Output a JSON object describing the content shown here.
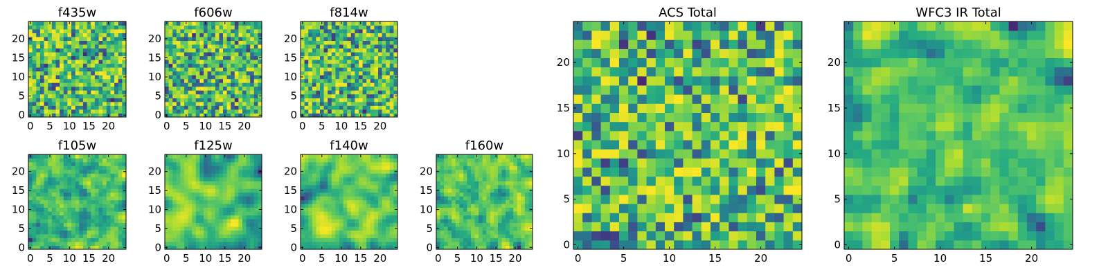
{
  "chart_data": [
    {
      "type": "heatmap",
      "title": "f435w",
      "grid_size": 25,
      "xticks": [
        0,
        5,
        10,
        15,
        20
      ],
      "yticks": [
        0,
        5,
        10,
        15,
        20
      ],
      "xlim": [
        -0.5,
        24.5
      ],
      "ylim": [
        -0.5,
        24.5
      ],
      "colormap": "viridis",
      "seed": 11,
      "smooth": 0,
      "grid": false
    },
    {
      "type": "heatmap",
      "title": "f606w",
      "grid_size": 25,
      "xticks": [
        0,
        5,
        10,
        15,
        20
      ],
      "yticks": [
        0,
        5,
        10,
        15,
        20
      ],
      "xlim": [
        -0.5,
        24.5
      ],
      "ylim": [
        -0.5,
        24.5
      ],
      "colormap": "viridis",
      "seed": 23,
      "smooth": 0,
      "grid": false
    },
    {
      "type": "heatmap",
      "title": "f814w",
      "grid_size": 25,
      "xticks": [
        0,
        5,
        10,
        15,
        20
      ],
      "yticks": [
        0,
        5,
        10,
        15,
        20
      ],
      "xlim": [
        -0.5,
        24.5
      ],
      "ylim": [
        -0.5,
        24.5
      ],
      "colormap": "viridis",
      "seed": 37,
      "smooth": 0,
      "grid": false
    },
    {
      "type": "heatmap",
      "title": "f105w",
      "grid_size": 25,
      "xticks": [
        0,
        5,
        10,
        15,
        20
      ],
      "yticks": [
        0,
        5,
        10,
        15,
        20
      ],
      "xlim": [
        -0.5,
        24.5
      ],
      "ylim": [
        -0.5,
        24.5
      ],
      "colormap": "viridis",
      "seed": 41,
      "smooth": 1,
      "grid": false
    },
    {
      "type": "heatmap",
      "title": "f125w",
      "grid_size": 25,
      "xticks": [
        0,
        5,
        10,
        15,
        20
      ],
      "yticks": [
        0,
        5,
        10,
        15,
        20
      ],
      "xlim": [
        -0.5,
        24.5
      ],
      "ylim": [
        -0.5,
        24.5
      ],
      "colormap": "viridis",
      "seed": 53,
      "smooth": 2,
      "grid": false
    },
    {
      "type": "heatmap",
      "title": "f140w",
      "grid_size": 25,
      "xticks": [
        0,
        5,
        10,
        15,
        20
      ],
      "yticks": [
        0,
        5,
        10,
        15,
        20
      ],
      "xlim": [
        -0.5,
        24.5
      ],
      "ylim": [
        -0.5,
        24.5
      ],
      "colormap": "viridis",
      "seed": 67,
      "smooth": 2,
      "grid": false
    },
    {
      "type": "heatmap",
      "title": "f160w",
      "grid_size": 25,
      "xticks": [
        0,
        5,
        10,
        15,
        20
      ],
      "yticks": [
        0,
        5,
        10,
        15,
        20
      ],
      "xlim": [
        -0.5,
        24.5
      ],
      "ylim": [
        -0.5,
        24.5
      ],
      "colormap": "viridis",
      "seed": 79,
      "smooth": 1,
      "grid": false
    },
    {
      "type": "heatmap",
      "title": "ACS Total",
      "grid_size": 25,
      "xticks": [
        0,
        5,
        10,
        15,
        20
      ],
      "yticks": [
        0,
        5,
        10,
        15,
        20
      ],
      "xlim": [
        -0.5,
        24.5
      ],
      "ylim": [
        -0.5,
        24.5
      ],
      "colormap": "viridis",
      "seed": 97,
      "smooth": 0,
      "grid": false
    },
    {
      "type": "heatmap",
      "title": "WFC3 IR Total",
      "grid_size": 25,
      "xticks": [
        0,
        5,
        10,
        15,
        20
      ],
      "yticks": [
        0,
        5,
        10,
        15,
        20
      ],
      "xlim": [
        -0.5,
        24.5
      ],
      "ylim": [
        -0.5,
        24.5
      ],
      "colormap": "viridis",
      "seed": 113,
      "smooth": 1,
      "grid": false
    }
  ]
}
